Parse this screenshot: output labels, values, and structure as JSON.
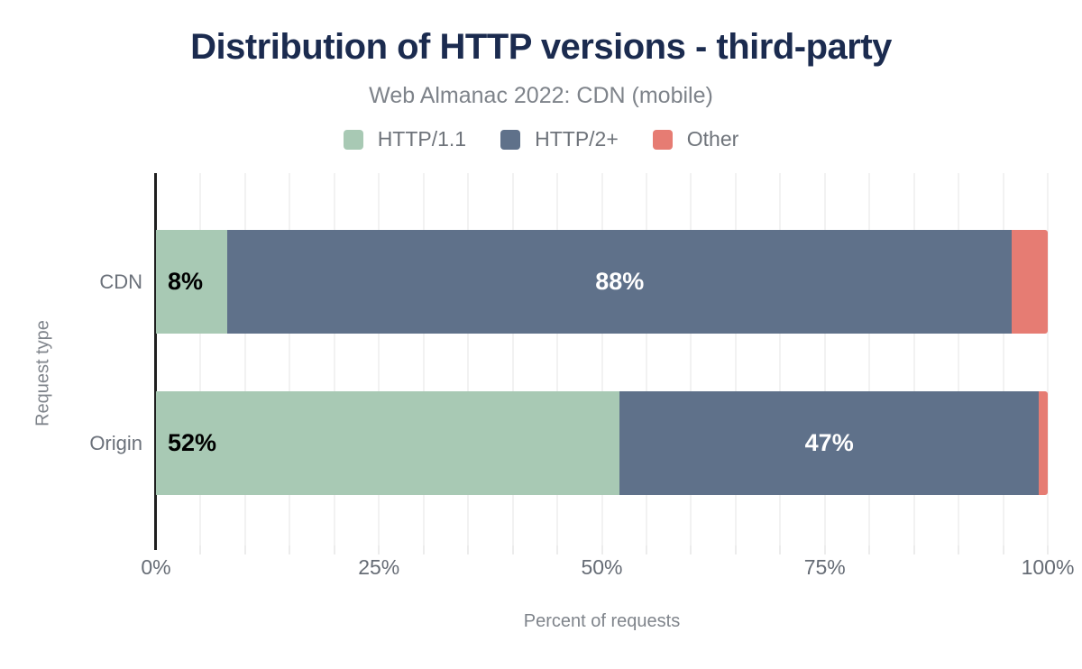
{
  "chart_data": {
    "type": "bar",
    "stacked": true,
    "orientation": "horizontal",
    "title": "Distribution of HTTP versions - third-party",
    "subtitle": "Web Almanac 2022: CDN (mobile)",
    "xlabel": "Percent of requests",
    "ylabel": "Request type",
    "categories": [
      "CDN",
      "Origin"
    ],
    "series": [
      {
        "name": "HTTP/1.1",
        "color": "#a8c9b4",
        "values": [
          8,
          52
        ],
        "labels": [
          "8%",
          "52%"
        ],
        "label_style": "inside-start-black"
      },
      {
        "name": "HTTP/2+",
        "color": "#5f718a",
        "values": [
          88,
          47
        ],
        "labels": [
          "88%",
          "47%"
        ],
        "label_style": "center-white"
      },
      {
        "name": "Other",
        "color": "#e67c73",
        "values": [
          4,
          1
        ],
        "labels": [
          "",
          ""
        ],
        "label_style": "none"
      }
    ],
    "x_ticks": [
      "0%",
      "25%",
      "50%",
      "75%",
      "100%"
    ],
    "xlim": [
      0,
      100
    ],
    "grid": "vertical every 5%",
    "legend_position": "top"
  },
  "palette": {
    "title_text": "#1b2b4f",
    "subtitle_text": "#7e838a",
    "axis_line": "#1f1f1f",
    "grid_line": "#f2f2f2",
    "tick_text": "#666c75",
    "bar_label_on_light": "#000000",
    "bar_label_on_dark": "#ffffff"
  }
}
